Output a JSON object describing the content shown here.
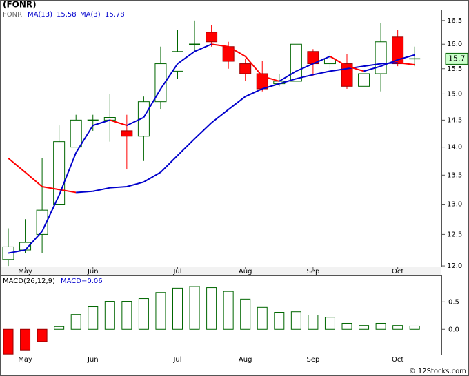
{
  "title": "(FONR)",
  "watermark": "© 12Stocks.com",
  "chart_data": [
    {
      "type": "candlestick",
      "series": [
        {
          "name": "FONR",
          "up_color": "#006600",
          "down_color": "#ff0000",
          "open": [
            12.1,
            12.25,
            12.5,
            13.0,
            14.0,
            14.5,
            14.5,
            14.3,
            14.2,
            14.85,
            15.45,
            16.0,
            16.25,
            15.95,
            15.6,
            15.4,
            15.2,
            15.25,
            15.85,
            15.6,
            15.6,
            15.15,
            15.4,
            16.15,
            15.7
          ],
          "high": [
            12.6,
            12.75,
            13.8,
            14.4,
            14.6,
            14.6,
            15.0,
            14.6,
            14.95,
            15.95,
            16.3,
            16.5,
            16.4,
            16.05,
            15.7,
            15.65,
            15.4,
            16.0,
            15.9,
            15.85,
            15.8,
            15.4,
            16.45,
            16.3,
            15.95
          ],
          "low": [
            12.0,
            12.2,
            12.2,
            13.0,
            14.0,
            14.3,
            14.1,
            13.6,
            13.75,
            14.7,
            15.3,
            15.85,
            15.95,
            15.5,
            15.25,
            15.05,
            15.15,
            15.25,
            15.35,
            15.5,
            15.1,
            15.15,
            15.05,
            15.55,
            15.55
          ],
          "close": [
            12.3,
            12.37,
            12.9,
            14.1,
            14.5,
            14.5,
            14.55,
            14.2,
            14.85,
            15.6,
            15.85,
            16.0,
            16.05,
            15.65,
            15.4,
            15.1,
            15.25,
            16.0,
            15.6,
            15.7,
            15.15,
            15.4,
            16.05,
            15.6,
            15.7
          ]
        },
        {
          "name": "MA(13)",
          "legend_value": 15.58,
          "up_color": "#0000cc",
          "down_color": "#ff0000",
          "values": [
            13.8,
            13.55,
            13.3,
            13.25,
            13.2,
            13.22,
            13.28,
            13.3,
            13.38,
            13.55,
            13.85,
            14.15,
            14.45,
            14.7,
            14.95,
            15.1,
            15.2,
            15.3,
            15.38,
            15.45,
            15.5,
            15.55,
            15.6,
            15.62,
            15.58
          ]
        },
        {
          "name": "MA(3)",
          "legend_value": 15.78,
          "up_color": "#0000cc",
          "down_color": "#ff0000",
          "values": [
            12.2,
            12.25,
            12.55,
            13.15,
            13.9,
            14.4,
            14.5,
            14.4,
            14.55,
            15.1,
            15.6,
            15.85,
            16.0,
            15.95,
            15.75,
            15.35,
            15.25,
            15.45,
            15.6,
            15.75,
            15.55,
            15.45,
            15.55,
            15.68,
            15.78
          ]
        }
      ],
      "last_price": 15.7,
      "log_scale": true,
      "ylim": [
        11.99,
        16.72
      ],
      "yticks": [
        {
          "value": 12,
          "label": "12.0"
        },
        12.5,
        {
          "value": 13,
          "label": "13.0"
        },
        13.5,
        {
          "value": 14,
          "label": "14.0"
        },
        14.5,
        {
          "value": 15,
          "label": "15.0"
        },
        15.5,
        {
          "value": 16,
          "label": "16.0"
        },
        16.5
      ],
      "xticks": [
        {
          "value": 1,
          "label": "May"
        },
        {
          "value": 5,
          "label": "Jun"
        },
        {
          "value": 10,
          "label": "Jul"
        },
        {
          "value": 14,
          "label": "Aug"
        },
        {
          "value": 18,
          "label": "Sep"
        },
        {
          "value": 23,
          "label": "Oct"
        }
      ]
    },
    {
      "type": "bar",
      "title": "MACD(26,12,9)",
      "value_caption": "MACD=0.06",
      "up_color": "#006600",
      "down_color": "#ff0000",
      "values": [
        -0.45,
        -0.375,
        -0.22,
        0.05,
        0.27,
        0.41,
        0.51,
        0.51,
        0.56,
        0.67,
        0.75,
        0.78,
        0.76,
        0.69,
        0.55,
        0.4,
        0.31,
        0.32,
        0.26,
        0.22,
        0.11,
        0.07,
        0.11,
        0.07,
        0.06
      ],
      "ylim": [
        -0.46,
        0.98
      ],
      "yticks": [
        {
          "value": 0,
          "label": "0.0"
        },
        0.5
      ]
    }
  ]
}
